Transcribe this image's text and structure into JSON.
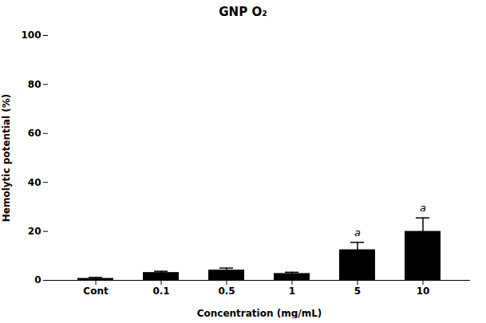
{
  "chart_data": {
    "type": "bar",
    "title": "GNP O₂",
    "xlabel": "Concentration (mg/mL)",
    "ylabel": "Hemolytic potential (%)",
    "categories": [
      "Cont",
      "0.1",
      "0.5",
      "1",
      "5",
      "10"
    ],
    "values": [
      0.8,
      3.2,
      4.2,
      2.8,
      12.5,
      20.0
    ],
    "errors": [
      0.4,
      0.5,
      0.8,
      0.5,
      3.0,
      5.5
    ],
    "color": "#000000",
    "ylim": [
      0,
      100
    ],
    "yticks": [
      0,
      20,
      40,
      60,
      80,
      100
    ],
    "grid": false,
    "annotations": [
      {
        "category": "5",
        "text": "a"
      },
      {
        "category": "10",
        "text": "a"
      }
    ]
  }
}
